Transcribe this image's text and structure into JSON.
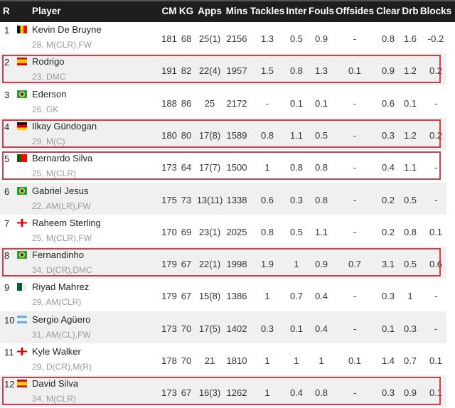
{
  "header": [
    "R",
    "",
    "Player",
    "CM",
    "KG",
    "Apps",
    "Mins",
    "Tackles",
    "Inter",
    "Fouls",
    "Offsides",
    "Clear",
    "Drb",
    "Blocks"
  ],
  "highlight_color": "#c8414c",
  "rows": [
    {
      "rank": "1",
      "flag": "belgium",
      "name": "Kevin De Bruyne",
      "sub": "28, M(CLR),FW",
      "vals": [
        "181",
        "68",
        "25(1)",
        "2156",
        "1.3",
        "0.5",
        "0.9",
        "-",
        "0.8",
        "1.6",
        "-0.2"
      ],
      "highlight": false
    },
    {
      "rank": "2",
      "flag": "spain",
      "name": "Rodrigo",
      "sub": "23, DMC",
      "vals": [
        "191",
        "82",
        "22(4)",
        "1957",
        "1.5",
        "0.8",
        "1.3",
        "0.1",
        "0.9",
        "1.2",
        "0.2"
      ],
      "highlight": true
    },
    {
      "rank": "3",
      "flag": "brazil",
      "name": "Ederson",
      "sub": "26, GK",
      "vals": [
        "188",
        "86",
        "25",
        "2172",
        "-",
        "0.1",
        "0.1",
        "-",
        "0.6",
        "0.1",
        "-"
      ],
      "highlight": false
    },
    {
      "rank": "4",
      "flag": "germany",
      "name": "Ilkay Gündogan",
      "sub": "29, M(C)",
      "vals": [
        "180",
        "80",
        "17(8)",
        "1589",
        "0.8",
        "1.1",
        "0.5",
        "-",
        "0.3",
        "1.2",
        "0.2"
      ],
      "highlight": true
    },
    {
      "rank": "5",
      "flag": "portugal",
      "name": "Bernardo Silva",
      "sub": "25, M(CLR)",
      "vals": [
        "173",
        "64",
        "17(7)",
        "1500",
        "1",
        "0.8",
        "0.8",
        "-",
        "0.4",
        "1.1",
        "-"
      ],
      "highlight": true
    },
    {
      "rank": "6",
      "flag": "brazil",
      "name": "Gabriel Jesus",
      "sub": "22, AM(LR),FW",
      "vals": [
        "175",
        "73",
        "13(11)",
        "1338",
        "0.6",
        "0.3",
        "0.8",
        "-",
        "0.2",
        "0.5",
        "-"
      ],
      "highlight": false
    },
    {
      "rank": "7",
      "flag": "england",
      "name": "Raheem Sterling",
      "sub": "25, M(CLR),FW",
      "vals": [
        "170",
        "69",
        "23(1)",
        "2025",
        "0.8",
        "0.5",
        "1.1",
        "-",
        "0.2",
        "0.8",
        "0.1"
      ],
      "highlight": false
    },
    {
      "rank": "8",
      "flag": "brazil",
      "name": "Fernandinho",
      "sub": "34, D(CR),DMC",
      "vals": [
        "179",
        "67",
        "22(1)",
        "1998",
        "1.9",
        "1",
        "0.9",
        "0.7",
        "3.1",
        "0.5",
        "0.6"
      ],
      "highlight": true
    },
    {
      "rank": "9",
      "flag": "algeria",
      "name": "Riyad Mahrez",
      "sub": "29, AM(CLR)",
      "vals": [
        "179",
        "67",
        "15(8)",
        "1386",
        "1",
        "0.7",
        "0.4",
        "-",
        "0.3",
        "1",
        "-"
      ],
      "highlight": false
    },
    {
      "rank": "10",
      "flag": "argentina",
      "name": "Sergio Agüero",
      "sub": "31, AM(CL),FW",
      "vals": [
        "173",
        "70",
        "17(5)",
        "1402",
        "0.3",
        "0.1",
        "0.4",
        "-",
        "0.1",
        "0.3",
        "-"
      ],
      "highlight": false
    },
    {
      "rank": "11",
      "flag": "england",
      "name": "Kyle Walker",
      "sub": "29, D(CR),M(R)",
      "vals": [
        "178",
        "70",
        "21",
        "1810",
        "1",
        "1",
        "1",
        "0.1",
        "1.4",
        "0.7",
        "0.1"
      ],
      "highlight": false
    },
    {
      "rank": "12",
      "flag": "spain",
      "name": "David Silva",
      "sub": "34, M(CLR)",
      "vals": [
        "173",
        "67",
        "16(3)",
        "1262",
        "1",
        "0.4",
        "0.8",
        "-",
        "0.3",
        "0.9",
        "0.1"
      ],
      "highlight": true
    }
  ]
}
